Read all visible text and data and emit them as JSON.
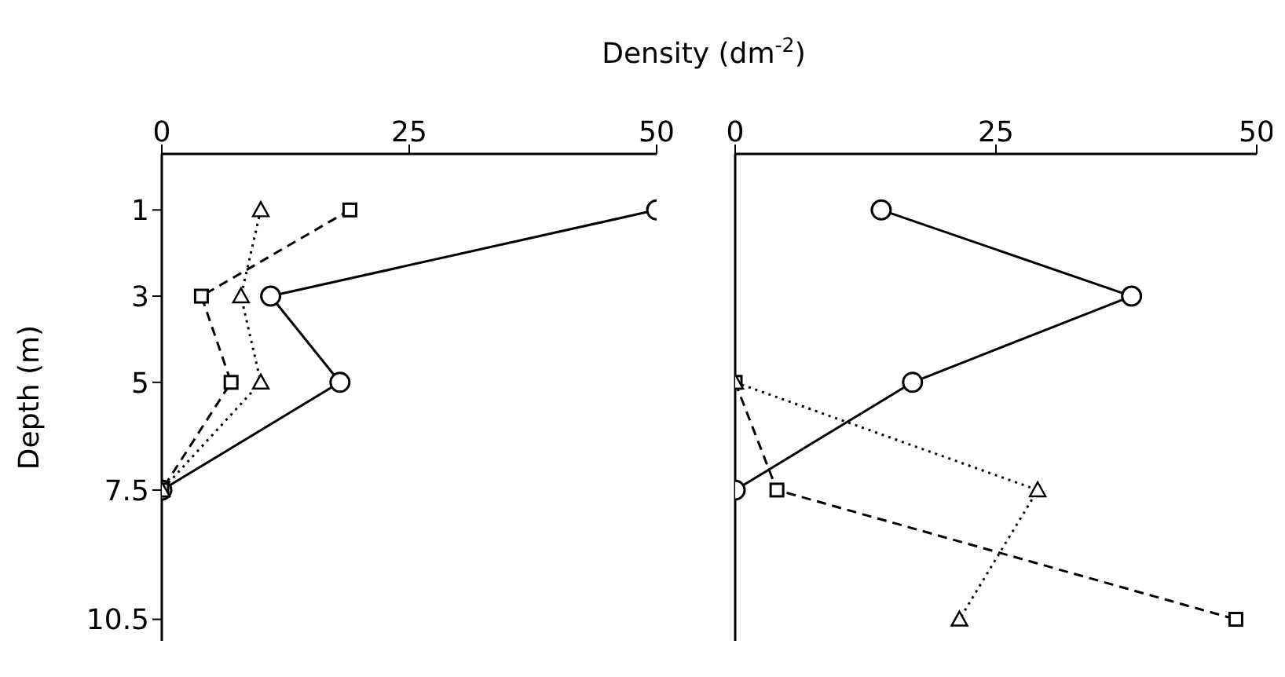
{
  "chart_data": [
    {
      "type": "line",
      "orientation": "horizontal",
      "xlabel": "Density (dm$^{-2}$)",
      "ylabel": "Depth (m)",
      "x": [
        1,
        3,
        5,
        7.5
      ],
      "xlim": [
        0,
        50
      ],
      "xticks": [
        0,
        25,
        50
      ],
      "ylim": [
        11,
        -0.3
      ],
      "yticks": [
        1,
        3,
        5,
        7.5,
        10.5
      ],
      "grid": false,
      "legend": false,
      "series": [
        {
          "color": "#000000",
          "marker": "circle",
          "line_style": "solid",
          "values": [
            50,
            11,
            18,
            0
          ]
        },
        {
          "color": "#000000",
          "marker": "square",
          "line_style": "dashed",
          "values": [
            19,
            4,
            7,
            0
          ]
        },
        {
          "color": "#000000",
          "marker": "triangle",
          "line_style": "dotted",
          "values": [
            10,
            8,
            10,
            0
          ]
        }
      ]
    },
    {
      "type": "line",
      "orientation": "horizontal",
      "x": [
        1,
        3,
        5,
        7.5,
        10.5
      ],
      "xlim": [
        0,
        50
      ],
      "xticks": [
        0,
        25,
        50
      ],
      "ylim": [
        11,
        -0.3
      ],
      "yticks": [
        1,
        3,
        5,
        7.5,
        10.5
      ],
      "tick_labels": "x",
      "grid": false,
      "legend": false,
      "series": [
        {
          "color": "#000000",
          "marker": "circle",
          "line_style": "solid",
          "values": [
            14,
            38,
            17,
            0,
            null
          ]
        },
        {
          "color": "#000000",
          "marker": "square",
          "line_style": "dashed",
          "values": [
            null,
            null,
            0,
            4,
            48
          ]
        },
        {
          "color": "#000000",
          "marker": "triangle",
          "line_style": "dotted",
          "values": [
            null,
            null,
            0,
            29,
            21.5
          ]
        }
      ]
    }
  ]
}
